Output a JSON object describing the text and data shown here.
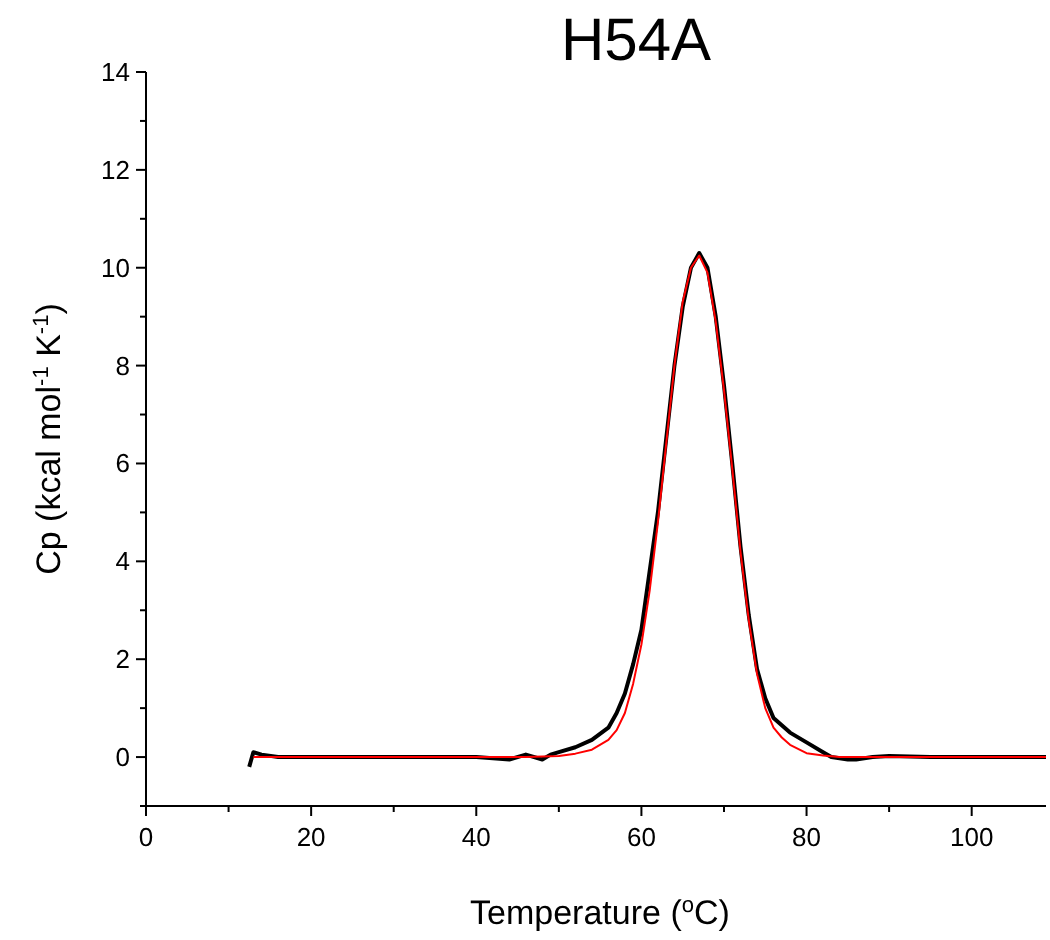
{
  "chart_data": {
    "type": "line",
    "title": "H54A",
    "xlabel": "Temperature ($^{o}$C)",
    "ylabel": "Cp (kcal mol$^{-1}$ K$^{-1}$)",
    "xlim": [
      0,
      109
    ],
    "ylim": [
      -1,
      14
    ],
    "xticks": [
      0,
      {
        "value": 10,
        "label": null
      },
      20,
      {
        "value": 30,
        "label": null
      },
      40,
      {
        "value": 50,
        "label": null
      },
      60,
      {
        "value": 70,
        "label": null
      },
      80,
      {
        "value": 90,
        "label": null
      },
      100
    ],
    "yticks": [
      {
        "value": -1,
        "label": null
      },
      0,
      {
        "value": 1,
        "label": null
      },
      2,
      {
        "value": 3,
        "label": null
      },
      4,
      {
        "value": 5,
        "label": null
      },
      6,
      {
        "value": 7,
        "label": null
      },
      8,
      {
        "value": 9,
        "label": null
      },
      10,
      {
        "value": 11,
        "label": null
      },
      12,
      {
        "value": 13,
        "label": null
      },
      14
    ],
    "marker": "none",
    "line_style": "solid",
    "series": [
      {
        "color": "#000000",
        "x": [
          12.5,
          13,
          14,
          16,
          20,
          25,
          30,
          35,
          40,
          44,
          46,
          48,
          49,
          50,
          52,
          54,
          56,
          57,
          58,
          59,
          60,
          61,
          62,
          63,
          64,
          65,
          66,
          67,
          68,
          69,
          70,
          71,
          72,
          73,
          74,
          75,
          76,
          77,
          78,
          80,
          82,
          83,
          85,
          86,
          88,
          90,
          95,
          100,
          105,
          109
        ],
        "values": [
          -0.2,
          0.1,
          0.05,
          0,
          0,
          0,
          0,
          0,
          0,
          -0.05,
          0.05,
          -0.05,
          0.05,
          0.1,
          0.2,
          0.35,
          0.6,
          0.9,
          1.3,
          1.9,
          2.6,
          3.8,
          5.0,
          6.5,
          8.0,
          9.2,
          10.0,
          10.3,
          10.0,
          9.0,
          7.6,
          6.0,
          4.3,
          2.9,
          1.8,
          1.2,
          0.8,
          0.65,
          0.5,
          0.3,
          0.1,
          0,
          -0.05,
          -0.05,
          0,
          0.02,
          0,
          0,
          0,
          0
        ]
      },
      {
        "color": "#ff0000",
        "x": [
          13,
          20,
          30,
          40,
          46,
          50,
          52,
          54,
          56,
          57,
          58,
          59,
          60,
          61,
          62,
          63,
          64,
          65,
          66,
          67,
          68,
          69,
          70,
          71,
          72,
          73,
          74,
          75,
          76,
          77,
          78,
          80,
          82,
          84,
          90,
          100,
          109
        ],
        "values": [
          0,
          0,
          0,
          0,
          0,
          0.02,
          0.07,
          0.15,
          0.35,
          0.55,
          0.9,
          1.5,
          2.3,
          3.4,
          4.8,
          6.4,
          8.0,
          9.3,
          10.0,
          10.25,
          9.9,
          8.9,
          7.5,
          5.9,
          4.2,
          2.8,
          1.7,
          1.0,
          0.6,
          0.4,
          0.25,
          0.08,
          0.03,
          0,
          0,
          0,
          0
        ]
      }
    ]
  }
}
